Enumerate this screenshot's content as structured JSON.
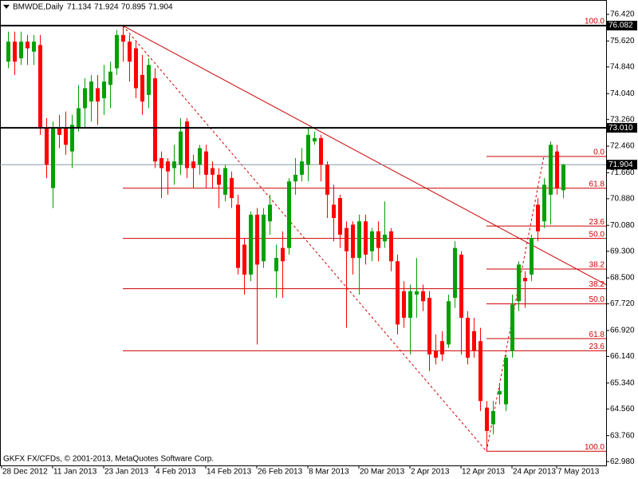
{
  "chart_data": {
    "type": "candlestick",
    "symbol": "BMWDE,Daily",
    "copyright": "GKFX FX/CFDs, © 2001-2013, MetaQuotes Software Corp.",
    "categories": [
      "28 Dec 2012",
      null,
      null,
      null,
      null,
      null,
      null,
      null,
      "11 Jan 2013",
      null,
      null,
      null,
      null,
      null,
      null,
      null,
      "23 Jan 2013",
      null,
      null,
      null,
      null,
      null,
      null,
      null,
      "4 Feb 2013",
      null,
      null,
      null,
      null,
      null,
      null,
      null,
      "14 Feb 2013",
      null,
      null,
      null,
      null,
      null,
      null,
      null,
      "26 Feb 2013",
      null,
      null,
      null,
      null,
      null,
      null,
      null,
      "8 Mar 2013",
      null,
      null,
      null,
      null,
      null,
      null,
      null,
      "20 Mar 2013",
      null,
      null,
      null,
      null,
      null,
      null,
      null,
      "2 Apr 2013",
      null,
      null,
      null,
      null,
      null,
      null,
      null,
      "12 Apr 2013",
      null,
      null,
      null,
      null,
      null,
      null,
      null,
      "24 Apr 2013",
      null,
      null,
      null,
      null,
      null,
      null,
      "7 May 2013"
    ],
    "open": [
      75.0,
      75.6,
      75.1,
      75.6,
      75.3,
      75.5,
      73.0,
      71.2,
      73.0,
      73.0,
      72.3,
      73.0,
      73.6,
      73.8,
      74.2,
      73.9,
      74.3,
      74.8,
      75.8,
      75.6,
      75.4,
      74.6,
      74.0,
      74.5,
      72.1,
      72.0,
      71.8,
      71.9,
      73.2,
      72.0,
      71.9,
      72.3,
      71.8,
      71.6,
      71.0,
      71.5,
      70.7,
      69.5,
      68.6,
      70.4,
      69.0,
      70.2,
      68.7,
      69.4,
      69.4,
      71.4,
      71.6,
      71.9,
      72.6,
      72.7,
      71.9,
      70.7,
      70.9,
      70.0,
      70.1,
      69.1,
      70.2,
      69.3,
      69.9,
      69.6,
      69.9,
      69.0,
      68.1,
      67.3,
      68.0,
      68.1,
      67.9,
      66.3,
      66.6,
      66.5,
      67.9,
      69.2,
      67.3,
      66.9,
      66.6,
      64.6,
      64.1,
      65.0,
      64.7,
      66.3,
      67.8,
      68.5,
      68.6,
      70.7,
      70.2,
      71.0,
      72.3,
      71.134
    ],
    "high": [
      75.9,
      75.9,
      75.9,
      75.8,
      75.8,
      75.8,
      73.3,
      73.2,
      73.4,
      73.5,
      73.4,
      74.3,
      74.5,
      74.6,
      74.6,
      74.9,
      75.0,
      75.95,
      76.082,
      75.8,
      75.6,
      75.2,
      75.1,
      74.8,
      72.3,
      72.1,
      72.5,
      73.3,
      73.3,
      72.2,
      72.5,
      72.5,
      72.0,
      71.8,
      71.9,
      71.7,
      71.0,
      69.7,
      70.5,
      70.6,
      70.6,
      71.0,
      69.5,
      69.9,
      71.5,
      72.1,
      72.4,
      73.0,
      72.9,
      72.8,
      72.0,
      71.3,
      71.0,
      70.2,
      70.2,
      70.4,
      70.4,
      70.0,
      70.2,
      70.8,
      70.0,
      69.2,
      68.4,
      68.3,
      69.1,
      68.3,
      68.1,
      66.8,
      66.9,
      68.0,
      69.6,
      69.3,
      67.5,
      67.3,
      67.0,
      64.8,
      64.8,
      65.3,
      66.2,
      68.0,
      69.0,
      68.7,
      69.8,
      70.9,
      71.5,
      72.6,
      72.5,
      71.924
    ],
    "low": [
      74.8,
      74.6,
      74.9,
      74.9,
      74.9,
      72.8,
      71.5,
      70.6,
      72.4,
      72.2,
      71.8,
      72.9,
      73.0,
      73.2,
      73.1,
      73.4,
      73.6,
      74.6,
      75.0,
      74.4,
      73.9,
      73.4,
      73.6,
      71.8,
      70.9,
      71.0,
      71.3,
      71.6,
      71.5,
      71.2,
      71.6,
      71.2,
      71.2,
      70.6,
      70.8,
      70.6,
      68.6,
      68.0,
      68.4,
      66.5,
      68.8,
      69.8,
      67.9,
      67.9,
      69.2,
      71.0,
      71.4,
      71.4,
      72.5,
      71.4,
      70.3,
      69.6,
      69.4,
      67.0,
      68.6,
      68.0,
      68.9,
      69.0,
      69.0,
      69.4,
      68.7,
      66.8,
      67.0,
      66.2,
      67.3,
      67.5,
      65.7,
      65.9,
      66.0,
      66.4,
      67.6,
      66.2,
      65.9,
      66.1,
      64.5,
      63.29,
      63.8,
      64.7,
      64.5,
      66.1,
      67.5,
      67.6,
      68.4,
      69.6,
      70.0,
      70.1,
      71.0,
      70.895
    ],
    "close": [
      75.6,
      75.0,
      75.6,
      75.4,
      75.6,
      73.0,
      71.9,
      73.0,
      72.8,
      72.5,
      73.1,
      73.6,
      74.2,
      74.4,
      73.8,
      74.4,
      74.7,
      75.8,
      75.6,
      75.0,
      74.2,
      73.8,
      74.9,
      72.0,
      71.8,
      71.7,
      72.0,
      72.9,
      71.8,
      71.8,
      72.4,
      71.6,
      71.6,
      71.3,
      71.8,
      70.9,
      68.8,
      68.6,
      70.4,
      68.9,
      70.4,
      70.7,
      69.1,
      69.0,
      71.4,
      71.6,
      72.0,
      72.8,
      72.7,
      71.9,
      71.0,
      70.3,
      69.8,
      69.3,
      69.1,
      70.2,
      69.2,
      69.9,
      69.4,
      69.8,
      69.0,
      67.1,
      67.3,
      68.1,
      68.1,
      67.8,
      66.2,
      66.1,
      66.2,
      67.8,
      69.4,
      67.3,
      66.1,
      66.3,
      64.8,
      63.9,
      64.5,
      65.1,
      66.1,
      67.7,
      68.9,
      68.4,
      69.7,
      69.9,
      71.3,
      72.5,
      71.2,
      71.904
    ],
    "up_color": "#00a000",
    "down_color": "#ff0000",
    "ylim": [
      62.864,
      76.852
    ],
    "yticks": [
      {
        "value": 62.98,
        "label": "62.980"
      },
      {
        "value": 63.76,
        "label": "63.760"
      },
      {
        "value": 64.56,
        "label": "64.560"
      },
      {
        "value": 65.34,
        "label": "65.340"
      },
      {
        "value": 66.14,
        "label": "66.140"
      },
      {
        "value": 66.92,
        "label": "66.920"
      },
      {
        "value": 67.72,
        "label": "67.720"
      },
      {
        "value": 68.5,
        "label": "68.500"
      },
      {
        "value": 69.3,
        "label": "69.300"
      },
      {
        "value": 70.08,
        "label": "70.080"
      },
      {
        "value": 70.88,
        "label": "70.880"
      },
      {
        "value": 71.66,
        "label": "71.660"
      },
      {
        "value": 72.46,
        "label": "72.460"
      },
      {
        "value": 73.26,
        "label": "73.260"
      },
      {
        "value": 74.04,
        "label": "74.040"
      },
      {
        "value": 74.84,
        "label": "74.840"
      },
      {
        "value": 75.62,
        "label": "75.620"
      },
      {
        "value": 76.42,
        "label": "76.420"
      }
    ],
    "hlines": [
      76.082,
      {
        "value": 73.01,
        "label": "73.010"
      }
    ],
    "price_line_color": "#8899aa",
    "annotation_color": "#cc0000",
    "trendline": {
      "from": {
        "index": 18,
        "price": 76.082
      },
      "to": {
        "index": 47,
        "price": 73.1
      }
    },
    "fibonacci": [
      {
        "from": {
          "index": 18,
          "price": 76.082
        },
        "to": {
          "index": 75,
          "price": 63.29
        },
        "levels": [
          {
            "value": 100,
            "label": "100.0"
          },
          61.8,
          {
            "value": 50,
            "label": "50.0"
          },
          38.2,
          23.6
        ]
      },
      {
        "from": {
          "index": 75,
          "price": 63.29
        },
        "to": {
          "index": 84,
          "price": 72.15
        },
        "levels": [
          {
            "value": 0,
            "label": "0.0"
          },
          23.6,
          38.2,
          {
            "value": 50,
            "label": "50.0"
          },
          61.8,
          {
            "value": 100,
            "label": "100.0"
          }
        ]
      }
    ]
  }
}
